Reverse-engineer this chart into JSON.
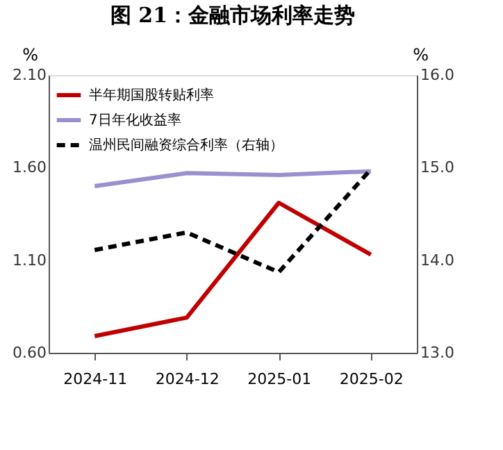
{
  "chart_data": {
    "type": "line",
    "title": "图 21：金融市场利率走势",
    "categories": [
      "2024-11",
      "2024-12",
      "2025-01",
      "2025-02"
    ],
    "series": [
      {
        "name": "半年期国股转贴利率",
        "color": "#c00000",
        "values": [
          0.69,
          0.79,
          1.41,
          1.13
        ],
        "line_style": "solid"
      },
      {
        "name": "7日年化收益率",
        "color": "#9b8fd0",
        "values": [
          1.5,
          1.57,
          1.56,
          1.58
        ],
        "line_style": "solid"
      },
      {
        "name": "温州民间融资综合利率（右轴）",
        "color": "#000000",
        "values": [
          14.11,
          14.3,
          13.87,
          14.98
        ],
        "line_style": "dashed",
        "axis": "y2"
      }
    ],
    "ylabel": "%",
    "y2label": "%",
    "ylim": [
      0.6,
      2.1
    ],
    "yticks": [
      {
        "value": 0.6,
        "label": "0.60"
      },
      {
        "value": 1.1,
        "label": "1.10"
      },
      {
        "value": 1.6,
        "label": "1.60"
      },
      {
        "value": 2.1,
        "label": "2.10"
      }
    ],
    "y2lim": [
      13.0,
      16.0
    ],
    "y2ticks": [
      {
        "value": 13.0,
        "label": "13.0"
      },
      {
        "value": 14.0,
        "label": "14.0"
      },
      {
        "value": 15.0,
        "label": "15.0"
      },
      {
        "value": 16.0,
        "label": "16.0"
      }
    ],
    "legend": "top left",
    "marker": "none"
  }
}
